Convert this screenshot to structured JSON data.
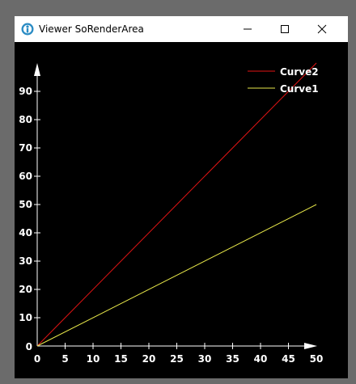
{
  "window": {
    "title": "Viewer SoRenderArea",
    "icons": {
      "app": "coin3d-app-icon",
      "minimize": "minimize-icon",
      "maximize": "maximize-icon",
      "close": "close-icon"
    }
  },
  "chart_data": {
    "type": "line",
    "title": "",
    "xlabel": "",
    "ylabel": "",
    "xlim": [
      0,
      50
    ],
    "ylim": [
      0,
      100
    ],
    "x_ticks": [
      0,
      5,
      10,
      15,
      20,
      25,
      30,
      35,
      40,
      45,
      50
    ],
    "y_ticks": [
      0,
      10,
      20,
      30,
      40,
      50,
      60,
      70,
      80,
      90
    ],
    "grid": false,
    "legend_placement": "top-right",
    "background": "#000000",
    "axis_color": "#ffffff",
    "series": [
      {
        "name": "Curve2",
        "color": "#e31414",
        "x": [
          0,
          50
        ],
        "y": [
          0,
          100
        ]
      },
      {
        "name": "Curve1",
        "color": "#e8e84a",
        "x": [
          0,
          50
        ],
        "y": [
          0,
          50
        ]
      }
    ]
  }
}
